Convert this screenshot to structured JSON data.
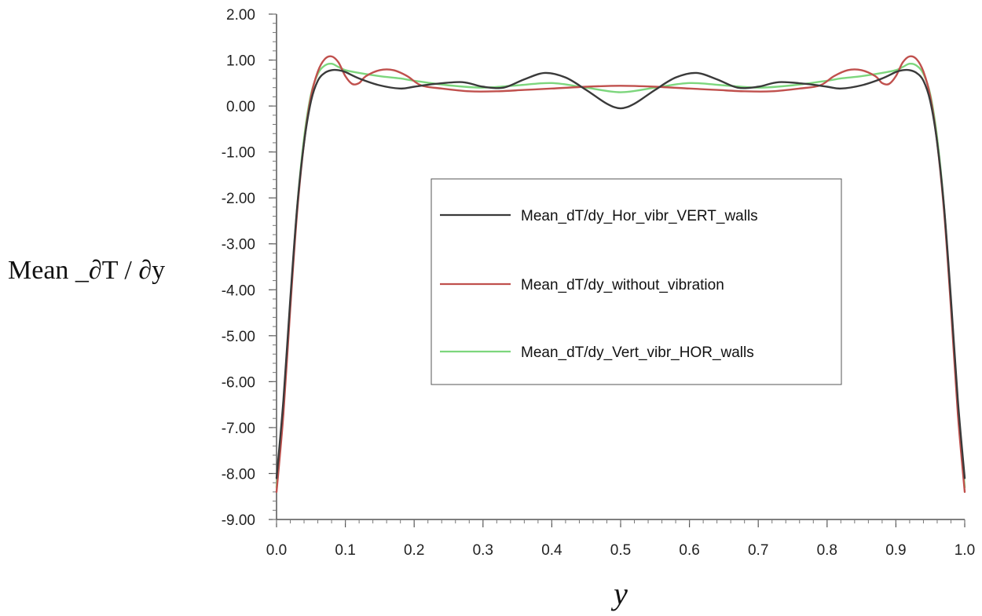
{
  "chart_data": {
    "type": "line",
    "title": "",
    "xlabel": "y",
    "ylabel": "Mean _∂T / ∂y",
    "xlim": [
      0.0,
      1.0
    ],
    "ylim": [
      -9.0,
      2.0
    ],
    "x_ticks": [
      "0.0",
      "0.1",
      "0.2",
      "0.3",
      "0.4",
      "0.5",
      "0.6",
      "0.7",
      "0.8",
      "0.9",
      "1.0"
    ],
    "y_ticks": [
      "2.00",
      "1.00",
      "0.00",
      "-1.00",
      "-2.00",
      "-3.00",
      "-4.00",
      "-5.00",
      "-6.00",
      "-7.00",
      "-8.00",
      "-9.00"
    ],
    "grid": false,
    "legend_position": "center-right",
    "series": [
      {
        "name": "Mean_dT/dy_Hor_vibr_VERT_walls",
        "color": "#3a3a3a",
        "x": [
          0.0,
          0.01,
          0.02,
          0.03,
          0.04,
          0.05,
          0.06,
          0.07,
          0.08,
          0.09,
          0.1,
          0.12,
          0.15,
          0.18,
          0.2,
          0.23,
          0.27,
          0.3,
          0.33,
          0.36,
          0.39,
          0.42,
          0.45,
          0.48,
          0.5,
          0.52,
          0.55,
          0.58,
          0.61,
          0.64,
          0.67,
          0.7,
          0.73,
          0.77,
          0.8,
          0.82,
          0.85,
          0.88,
          0.9,
          0.91,
          0.92,
          0.93,
          0.94,
          0.95,
          0.96,
          0.97,
          0.98,
          0.99,
          1.0
        ],
        "values": [
          -8.1,
          -6.4,
          -4.2,
          -2.2,
          -0.8,
          0.1,
          0.55,
          0.72,
          0.78,
          0.78,
          0.74,
          0.6,
          0.45,
          0.38,
          0.42,
          0.48,
          0.52,
          0.42,
          0.4,
          0.58,
          0.72,
          0.62,
          0.35,
          0.05,
          -0.05,
          0.05,
          0.35,
          0.62,
          0.72,
          0.58,
          0.4,
          0.42,
          0.52,
          0.48,
          0.42,
          0.38,
          0.45,
          0.6,
          0.74,
          0.78,
          0.78,
          0.72,
          0.55,
          0.1,
          -0.8,
          -2.2,
          -4.2,
          -6.4,
          -8.1
        ]
      },
      {
        "name": "Mean_dT/dy_without_vibration",
        "color": "#c0504d",
        "x": [
          0.0,
          0.01,
          0.02,
          0.03,
          0.04,
          0.05,
          0.06,
          0.07,
          0.08,
          0.09,
          0.1,
          0.11,
          0.12,
          0.13,
          0.15,
          0.17,
          0.19,
          0.21,
          0.24,
          0.28,
          0.32,
          0.36,
          0.4,
          0.45,
          0.5,
          0.55,
          0.6,
          0.64,
          0.68,
          0.72,
          0.76,
          0.79,
          0.81,
          0.83,
          0.85,
          0.87,
          0.88,
          0.89,
          0.9,
          0.91,
          0.92,
          0.93,
          0.94,
          0.95,
          0.96,
          0.97,
          0.98,
          0.99,
          1.0
        ],
        "values": [
          -8.4,
          -6.7,
          -4.4,
          -2.3,
          -0.8,
          0.2,
          0.75,
          1.02,
          1.08,
          0.95,
          0.65,
          0.48,
          0.5,
          0.65,
          0.78,
          0.78,
          0.65,
          0.45,
          0.38,
          0.32,
          0.32,
          0.35,
          0.38,
          0.42,
          0.44,
          0.42,
          0.38,
          0.35,
          0.32,
          0.32,
          0.38,
          0.45,
          0.65,
          0.78,
          0.78,
          0.65,
          0.5,
          0.48,
          0.65,
          0.95,
          1.08,
          1.02,
          0.75,
          0.2,
          -0.8,
          -2.3,
          -4.4,
          -6.7,
          -8.4
        ]
      },
      {
        "name": "Mean_dT/dy_Vert_vibr_HOR_walls",
        "color": "#7dd67d",
        "x": [
          0.0,
          0.01,
          0.02,
          0.03,
          0.04,
          0.05,
          0.06,
          0.07,
          0.08,
          0.09,
          0.1,
          0.12,
          0.15,
          0.18,
          0.2,
          0.25,
          0.3,
          0.35,
          0.4,
          0.45,
          0.5,
          0.55,
          0.6,
          0.65,
          0.7,
          0.75,
          0.8,
          0.82,
          0.85,
          0.88,
          0.9,
          0.91,
          0.92,
          0.93,
          0.94,
          0.95,
          0.96,
          0.97,
          0.98,
          0.99,
          1.0
        ],
        "values": [
          -8.3,
          -6.5,
          -4.3,
          -2.2,
          -0.7,
          0.25,
          0.7,
          0.88,
          0.92,
          0.85,
          0.78,
          0.72,
          0.65,
          0.6,
          0.55,
          0.45,
          0.4,
          0.45,
          0.5,
          0.4,
          0.3,
          0.4,
          0.5,
          0.45,
          0.4,
          0.45,
          0.55,
          0.6,
          0.65,
          0.72,
          0.78,
          0.85,
          0.92,
          0.88,
          0.7,
          0.25,
          -0.7,
          -2.2,
          -4.3,
          -6.5,
          -8.3
        ]
      }
    ]
  }
}
